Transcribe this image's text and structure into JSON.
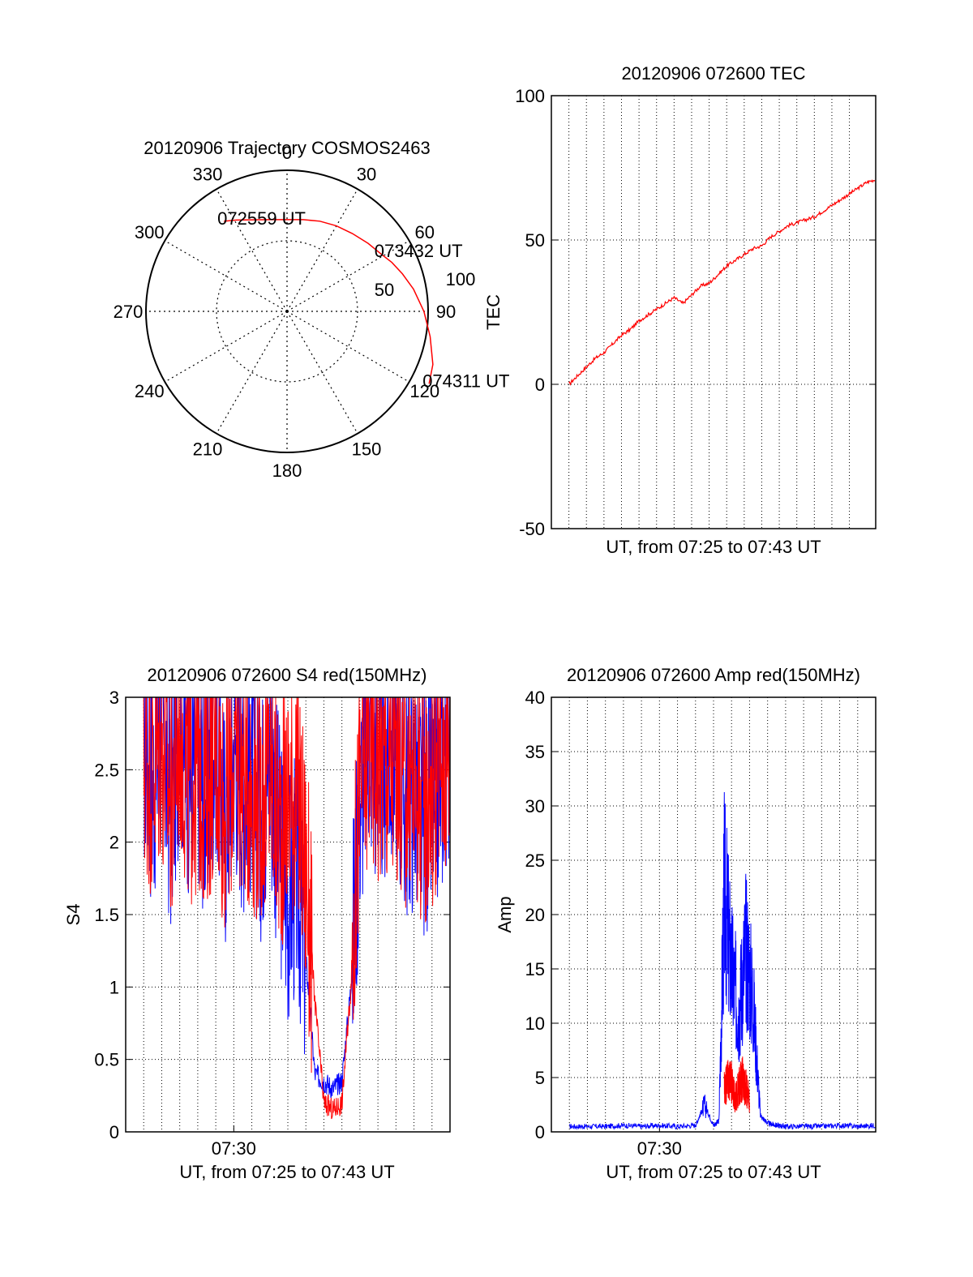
{
  "colors": {
    "red": "#ff0000",
    "blue": "#0000ff",
    "axis": "#000000",
    "grid": "#000000",
    "background": "#ffffff"
  },
  "chart_data": [
    {
      "id": "trajectory",
      "type": "polar",
      "title": "20120906 Trajectory COSMOS2463",
      "azimuth_labels": [
        "0",
        "30",
        "60",
        "90",
        "120",
        "150",
        "180",
        "210",
        "240",
        "270",
        "300",
        "330"
      ],
      "azimuths": [
        0,
        30,
        60,
        90,
        120,
        150,
        180,
        210,
        240,
        270,
        300,
        330
      ],
      "radial_labels": [
        "50",
        "100"
      ],
      "radial_values": [
        50,
        100
      ],
      "rlim": [
        0,
        100
      ],
      "track_azimuth": [
        325,
        331,
        340,
        350,
        0,
        10,
        20,
        30,
        40,
        50,
        58.5,
        65,
        72,
        80,
        90,
        100,
        110,
        117
      ],
      "track_radius": [
        78,
        74,
        69,
        66,
        65,
        66,
        68,
        70,
        72,
        75,
        78,
        82,
        86,
        91,
        97,
        103,
        110,
        113
      ],
      "points": [
        {
          "label": "072559 UT",
          "azimuth": 325,
          "radius": 78
        },
        {
          "label": "073432 UT",
          "azimuth": 58.5,
          "radius": 78
        },
        {
          "label": "074311 UT",
          "azimuth": 117,
          "radius": 113
        }
      ],
      "series_color": "#ff0000",
      "grid": true
    },
    {
      "id": "tec",
      "type": "line",
      "title": "20120906 072600 TEC",
      "xlabel": "UT, from 07:25 to 07:43 UT",
      "ylabel": "TEC",
      "xlim": [
        -1.5,
        17
      ],
      "ylim": [
        -50,
        100
      ],
      "yticks": [
        -50,
        0,
        50,
        100
      ],
      "xticks": [],
      "x_unit": "minutes after 07:25",
      "grid_x": [
        -0.5,
        0.5,
        1.5,
        2.5,
        3.5,
        4.5,
        5.5,
        6.5,
        7.5,
        8.5,
        9.5,
        10.5,
        11.5,
        12.5,
        13.5,
        14.5,
        15.5
      ],
      "series": [
        {
          "color": "#ff0000",
          "x": [
            -0.5,
            0,
            0.5,
            1,
            1.5,
            2,
            2.5,
            3,
            3.5,
            4,
            4.5,
            5,
            5.5,
            6,
            6.5,
            7,
            7.5,
            8,
            8.5,
            9,
            9.5,
            10,
            10.5,
            11,
            11.5,
            12,
            12.5,
            13,
            13.5,
            14,
            14.5,
            15,
            15.5,
            16,
            16.5,
            17
          ],
          "values": [
            0,
            3,
            6,
            9,
            11,
            14,
            17,
            19,
            22,
            24,
            26,
            28,
            30,
            28,
            31,
            34,
            35,
            38,
            41,
            43,
            45,
            47,
            48,
            51,
            53,
            55,
            56,
            57,
            58,
            60,
            62,
            64,
            66,
            68,
            70,
            71
          ]
        }
      ],
      "grid": true
    },
    {
      "id": "s4",
      "type": "line",
      "title": "20120906 072600 S4 red(150MHz)",
      "xlabel": "UT, from 07:25 to 07:43 UT",
      "ylabel": "S4",
      "xlim": [
        -1,
        17
      ],
      "ylim": [
        0,
        3
      ],
      "yticks": [
        0,
        0.5,
        1,
        1.5,
        2,
        2.5,
        3
      ],
      "ytick_labels": [
        "0",
        "0.5",
        "1",
        "1.5",
        "2",
        "2.5",
        "3"
      ],
      "xticks": [
        5
      ],
      "xtick_labels": [
        "07:30"
      ],
      "x_unit": "minutes after 07:25",
      "grid_x": [
        0,
        1,
        2,
        3,
        4,
        5,
        6,
        7,
        8,
        9,
        10,
        11,
        12,
        13,
        14,
        15,
        16
      ],
      "series": [
        {
          "color": "#0000ff",
          "x": [
            0,
            0.5,
            1,
            1.5,
            2,
            2.5,
            3,
            3.5,
            4,
            4.5,
            5,
            5.5,
            6,
            6.5,
            7,
            7.5,
            8,
            8.5,
            9,
            9.5,
            10,
            10.5,
            11,
            11.5,
            12,
            12.5,
            13,
            13.5,
            14,
            14.5,
            15,
            15.5,
            16,
            16.5,
            17
          ],
          "values": [
            2.7,
            2.4,
            2.8,
            2.2,
            2.9,
            2.5,
            2.6,
            2.3,
            2.8,
            2.1,
            2.7,
            2.4,
            2.5,
            2.2,
            2.6,
            2.0,
            1.6,
            1.8,
            1.2,
            0.4,
            0.35,
            0.3,
            0.35,
            1.0,
            2.3,
            2.8,
            2.5,
            2.6,
            2.7,
            2.3,
            2.4,
            2.2,
            2.3,
            2.5,
            2.8
          ]
        },
        {
          "color": "#ff0000",
          "x": [
            0,
            0.5,
            1,
            1.5,
            2,
            2.5,
            3,
            3.5,
            4,
            4.5,
            5,
            5.5,
            6,
            6.5,
            7,
            7.5,
            8,
            8.5,
            9,
            9.5,
            10,
            10.5,
            11,
            11.5,
            12,
            12.5,
            13,
            13.5,
            14,
            14.5,
            15,
            15.5,
            16,
            16.5,
            17
          ],
          "values": [
            2.6,
            2.5,
            2.7,
            2.3,
            2.8,
            2.4,
            2.5,
            2.4,
            2.7,
            2.2,
            2.6,
            2.5,
            2.4,
            2.3,
            2.5,
            2.1,
            2.3,
            2.4,
            1.8,
            0.9,
            0.2,
            0.15,
            0.2,
            1.0,
            2.4,
            2.7,
            2.6,
            2.5,
            2.6,
            2.4,
            2.5,
            2.3,
            2.4,
            2.6,
            2.7
          ]
        }
      ],
      "grid": true
    },
    {
      "id": "amp",
      "type": "line",
      "title": "20120906 072600 Amp red(150MHz)",
      "xlabel": "UT, from 07:25 to 07:43 UT",
      "ylabel": "Amp",
      "xlim": [
        -1,
        17
      ],
      "ylim": [
        0,
        40
      ],
      "yticks": [
        0,
        5,
        10,
        15,
        20,
        25,
        30,
        35,
        40
      ],
      "xticks": [
        5
      ],
      "xtick_labels": [
        "07:30"
      ],
      "x_unit": "minutes after 07:25",
      "grid_x": [
        0,
        1,
        2,
        3,
        4,
        5,
        6,
        7,
        8,
        9,
        10,
        11,
        12,
        13,
        14,
        15,
        16
      ],
      "series": [
        {
          "color": "#0000ff",
          "x": [
            0,
            1,
            2,
            3,
            4,
            5,
            6,
            7,
            7.5,
            8,
            8.3,
            8.6,
            9,
            9.4,
            9.8,
            10.2,
            10.6,
            11,
            11.5,
            12,
            13,
            14,
            15,
            16,
            17
          ],
          "values": [
            0.5,
            0.5,
            0.5,
            0.6,
            0.5,
            0.6,
            0.5,
            0.6,
            2.5,
            0.6,
            1.0,
            22,
            15,
            11,
            17,
            12,
            1.5,
            0.8,
            0.6,
            0.5,
            0.5,
            0.5,
            0.6,
            0.5,
            0.6
          ]
        },
        {
          "color": "#ff0000",
          "x": [
            8.6,
            8.8,
            9,
            9.2,
            9.4,
            9.6,
            9.8,
            10
          ],
          "values": [
            4,
            5,
            4.5,
            3,
            4,
            5,
            4,
            3
          ]
        }
      ],
      "grid": true
    }
  ]
}
